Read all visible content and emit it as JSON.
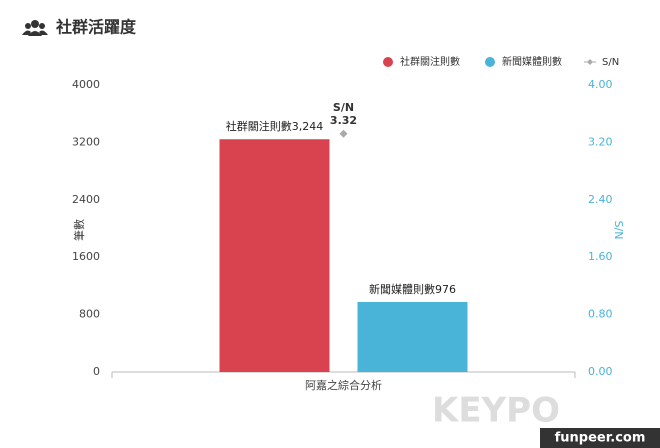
{
  "chart_data": {
    "type": "bar",
    "title": "社群活躍度",
    "categories": [
      "阿嘉之綜合分析"
    ],
    "series": [
      {
        "name": "社群關注則數",
        "color": "#d9434f",
        "values": [
          3244
        ],
        "value_labels": [
          "社群關注則數3,244"
        ]
      },
      {
        "name": "新聞媒體則數",
        "color": "#4ab3d8",
        "values": [
          976
        ],
        "value_labels": [
          "新聞媒體則數976"
        ]
      },
      {
        "name": "S/N",
        "color": "#aaaaaa",
        "values": [
          3.32
        ],
        "axis": "y2",
        "type": "line"
      }
    ],
    "ylabel": "筆數",
    "y2label": "S/N",
    "ylim": [
      0,
      4000
    ],
    "yticks": [
      0,
      800,
      1600,
      2400,
      3200,
      4000
    ],
    "y2lim": [
      0,
      4
    ],
    "y2ticks": [
      {
        "value": 0,
        "label": "0.00"
      },
      {
        "value": 0.8,
        "label": "0.80"
      },
      {
        "value": 1.6,
        "label": "1.60"
      },
      {
        "value": 2.4,
        "label": "2.40"
      },
      {
        "value": 3.2,
        "label": "3.20"
      },
      {
        "value": 4,
        "label": "4.00"
      }
    ],
    "grid": false,
    "legend": "top-right",
    "watermark": [
      "KEYPO",
      "funpeer.com"
    ]
  }
}
